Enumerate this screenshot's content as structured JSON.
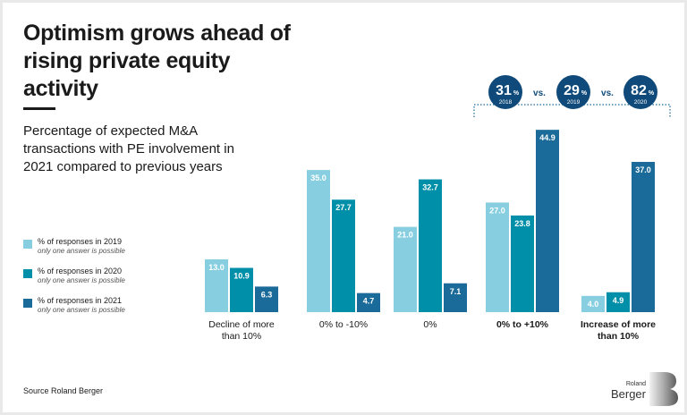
{
  "title": "Optimism grows ahead of rising private equity activity",
  "subtitle": "Percentage of expected M&A transactions with PE involvement in 2021 compared to previous years",
  "legend": [
    {
      "label": "% of responses in 2019",
      "note": "only one answer is possible",
      "color": "#87cfe0"
    },
    {
      "label": "% of responses in 2020",
      "note": "only one answer is possible",
      "color": "#008fa8"
    },
    {
      "label": "% of responses in 2021",
      "note": "only one answer is possible",
      "color": "#1a6a9a"
    }
  ],
  "badges": {
    "items": [
      {
        "value": "31",
        "unit": "%",
        "year": "2018"
      },
      {
        "value": "29",
        "unit": "%",
        "year": "2019"
      },
      {
        "value": "82",
        "unit": "%",
        "year": "2020"
      }
    ],
    "separator": "vs.",
    "color": "#0f4a7a"
  },
  "source": "Source Roland Berger",
  "logo": {
    "top": "Roland",
    "bottom": "Berger"
  },
  "chart_data": {
    "type": "bar",
    "title": "Percentage of expected M&A transactions with PE involvement in 2021 compared to previous years",
    "xlabel": "",
    "ylabel": "",
    "ylim": [
      0,
      50
    ],
    "grid": false,
    "legend_position": "left",
    "categories": [
      [
        "Decline of more",
        "than 10%"
      ],
      [
        "0% to -10%"
      ],
      [
        "0%"
      ],
      [
        "0% to +10%"
      ],
      [
        "Increase of more",
        "than 10%"
      ]
    ],
    "highlighted_categories": [
      3,
      4
    ],
    "series": [
      {
        "name": "% of responses in 2019",
        "color": "#87cfe0",
        "values": [
          13.0,
          35.0,
          21.0,
          27.0,
          4.0
        ]
      },
      {
        "name": "% of responses in 2020",
        "color": "#008fa8",
        "values": [
          10.9,
          27.7,
          32.7,
          23.8,
          4.9
        ]
      },
      {
        "name": "% of responses in 2021",
        "color": "#1a6a9a",
        "values": [
          6.3,
          4.7,
          7.1,
          44.9,
          37.0
        ]
      }
    ]
  }
}
